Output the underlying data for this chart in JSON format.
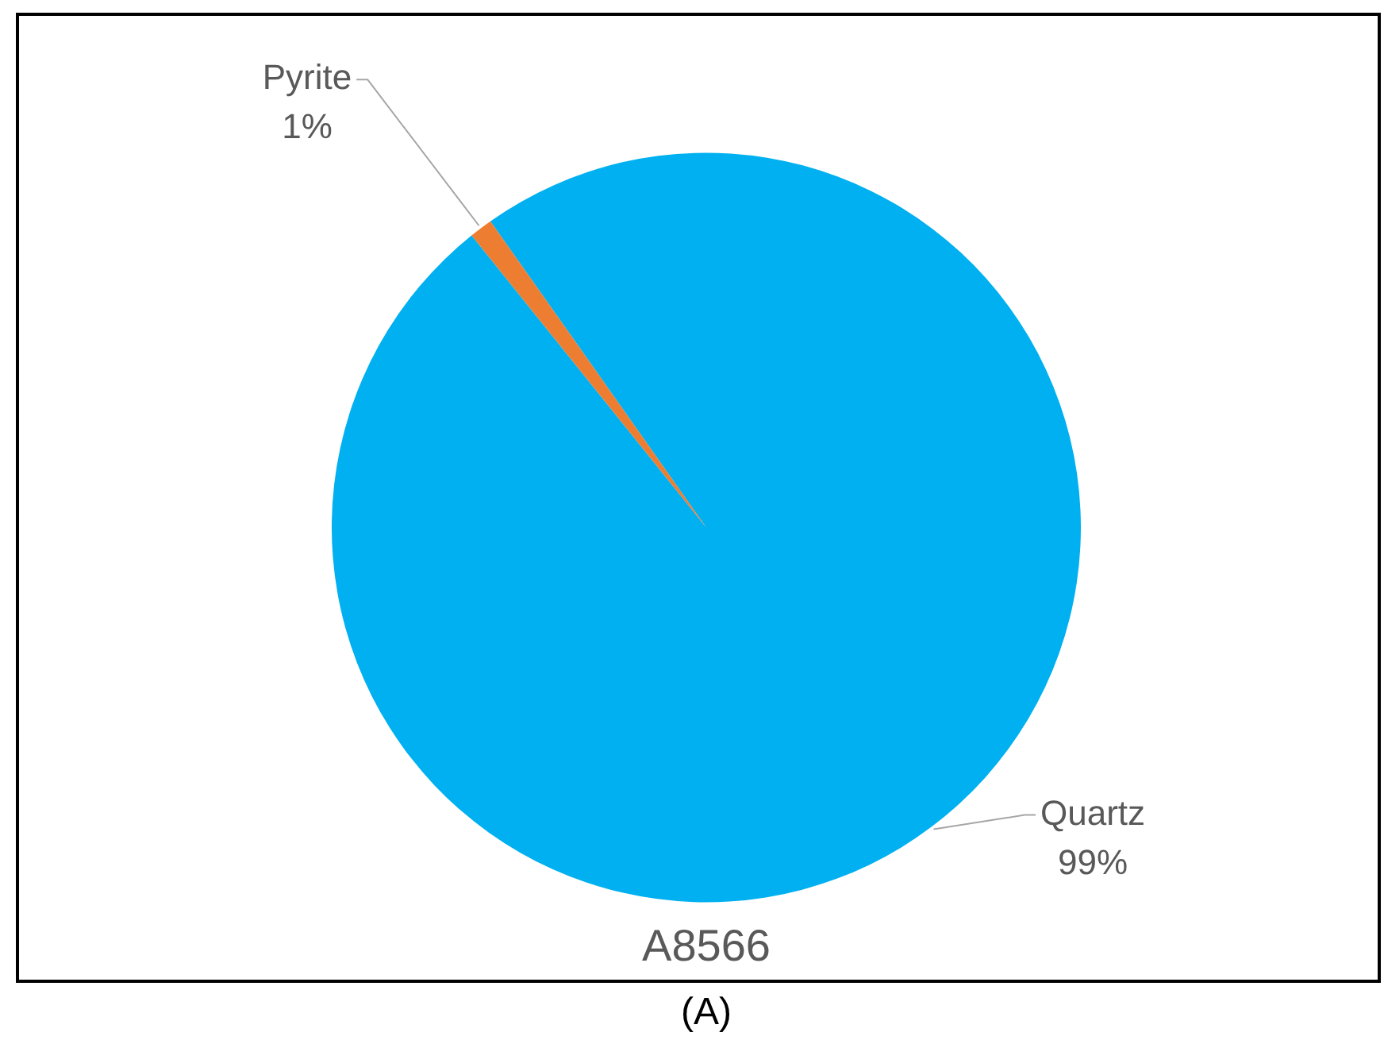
{
  "chart_data": {
    "type": "pie",
    "title": "A8566",
    "categories": [
      "Quartz",
      "Pyrite"
    ],
    "values": [
      99,
      1
    ],
    "colors": [
      "#00b0f0",
      "#ed7d31"
    ],
    "value_labels": [
      "99%",
      "1%"
    ],
    "annotations": [
      "(A)"
    ]
  }
}
